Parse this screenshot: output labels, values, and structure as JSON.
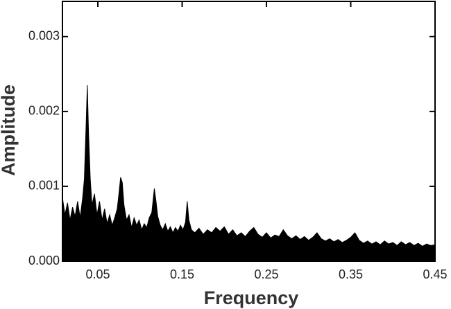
{
  "chart_data": {
    "type": "area",
    "x_label": "Frequency",
    "y_label": "Amplitude",
    "color": "#000000",
    "xlim": [
      0.008,
      0.45
    ],
    "ylim": [
      0,
      0.00347
    ],
    "xticks": [
      0.05,
      0.15,
      0.25,
      0.35,
      0.45
    ],
    "yticks": [
      {
        "value": 0,
        "label": "0.000"
      },
      {
        "value": 0.001,
        "label": "0.001"
      },
      {
        "value": 0.002,
        "label": "0.002"
      },
      {
        "value": 0.003,
        "label": "0.003"
      }
    ],
    "x": [
      0.008,
      0.011,
      0.014,
      0.017,
      0.02,
      0.023,
      0.026,
      0.029,
      0.032,
      0.034,
      0.036,
      0.0375,
      0.039,
      0.041,
      0.043,
      0.046,
      0.049,
      0.052,
      0.055,
      0.058,
      0.061,
      0.064,
      0.067,
      0.07,
      0.073,
      0.075,
      0.077,
      0.079,
      0.081,
      0.084,
      0.087,
      0.09,
      0.093,
      0.096,
      0.099,
      0.102,
      0.105,
      0.108,
      0.111,
      0.114,
      0.117,
      0.119,
      0.121,
      0.124,
      0.127,
      0.13,
      0.133,
      0.136,
      0.139,
      0.142,
      0.145,
      0.148,
      0.151,
      0.154,
      0.156,
      0.158,
      0.161,
      0.165,
      0.17,
      0.175,
      0.18,
      0.185,
      0.19,
      0.195,
      0.2,
      0.205,
      0.21,
      0.215,
      0.22,
      0.225,
      0.23,
      0.235,
      0.24,
      0.245,
      0.25,
      0.255,
      0.26,
      0.265,
      0.27,
      0.275,
      0.28,
      0.285,
      0.29,
      0.295,
      0.3,
      0.305,
      0.31,
      0.315,
      0.32,
      0.325,
      0.33,
      0.335,
      0.34,
      0.345,
      0.35,
      0.355,
      0.36,
      0.365,
      0.37,
      0.375,
      0.38,
      0.385,
      0.39,
      0.395,
      0.4,
      0.405,
      0.41,
      0.415,
      0.42,
      0.425,
      0.43,
      0.435,
      0.44,
      0.445,
      0.45
    ],
    "values": [
      0.00085,
      0.00062,
      0.00078,
      0.00055,
      0.00072,
      0.0006,
      0.0008,
      0.00058,
      0.00085,
      0.0011,
      0.0018,
      0.00235,
      0.0017,
      0.0011,
      0.00075,
      0.0009,
      0.00062,
      0.0008,
      0.00055,
      0.0007,
      0.0005,
      0.00062,
      0.00048,
      0.00058,
      0.0007,
      0.0009,
      0.00112,
      0.00105,
      0.00075,
      0.00055,
      0.00062,
      0.00045,
      0.00058,
      0.00048,
      0.00055,
      0.00042,
      0.0005,
      0.00045,
      0.00058,
      0.00065,
      0.00097,
      0.0008,
      0.0006,
      0.00048,
      0.00042,
      0.0005,
      0.0004,
      0.00046,
      0.00038,
      0.00045,
      0.0004,
      0.00048,
      0.00042,
      0.00052,
      0.0008,
      0.00055,
      0.00042,
      0.00038,
      0.00044,
      0.00036,
      0.00042,
      0.00038,
      0.00045,
      0.0004,
      0.00046,
      0.00036,
      0.00042,
      0.00034,
      0.00038,
      0.00033,
      0.0004,
      0.00045,
      0.00036,
      0.00032,
      0.00038,
      0.00031,
      0.00035,
      0.00033,
      0.00042,
      0.00034,
      0.0003,
      0.00034,
      0.00029,
      0.00033,
      0.00028,
      0.00032,
      0.00038,
      0.0003,
      0.00027,
      0.0003,
      0.00026,
      0.00029,
      0.00025,
      0.00028,
      0.00032,
      0.00038,
      0.00028,
      0.00024,
      0.00027,
      0.00023,
      0.00026,
      0.00022,
      0.00027,
      0.00023,
      0.00025,
      0.00021,
      0.00026,
      0.00022,
      0.00025,
      0.00021,
      0.00024,
      0.0002,
      0.00023,
      0.00021,
      0.00022
    ]
  }
}
